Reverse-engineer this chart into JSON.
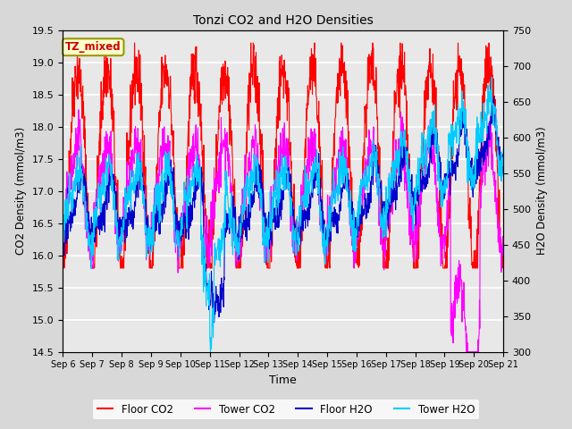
{
  "title": "Tonzi CO2 and H2O Densities",
  "xlabel": "Time",
  "ylabel_left": "CO2 Density (mmol/m3)",
  "ylabel_right": "H2O Density (mmol/m3)",
  "ylim_left": [
    14.5,
    19.5
  ],
  "ylim_right": [
    300,
    750
  ],
  "yticks_left": [
    14.5,
    15.0,
    15.5,
    16.0,
    16.5,
    17.0,
    17.5,
    18.0,
    18.5,
    19.0,
    19.5
  ],
  "yticks_right": [
    300,
    350,
    400,
    450,
    500,
    550,
    600,
    650,
    700,
    750
  ],
  "xtick_labels": [
    "Sep 6",
    "Sep 7",
    "Sep 8",
    "Sep 9",
    "Sep 10",
    "Sep 11",
    "Sep 12",
    "Sep 13",
    "Sep 14",
    "Sep 15",
    "Sep 16",
    "Sep 17",
    "Sep 18",
    "Sep 19",
    "Sep 20",
    "Sep 21"
  ],
  "annotation_text": "TZ_mixed",
  "annotation_color": "#cc0000",
  "annotation_bg": "#ffffcc",
  "floor_co2_color": "#ff0000",
  "tower_co2_color": "#ff00ff",
  "floor_h2o_color": "#0000cc",
  "tower_h2o_color": "#00ccff",
  "legend_labels": [
    "Floor CO2",
    "Tower CO2",
    "Floor H2O",
    "Tower H2O"
  ],
  "fig_bg_color": "#d8d8d8",
  "plot_bg_color": "#e8e8e8",
  "n_days": 15,
  "seed": 42
}
